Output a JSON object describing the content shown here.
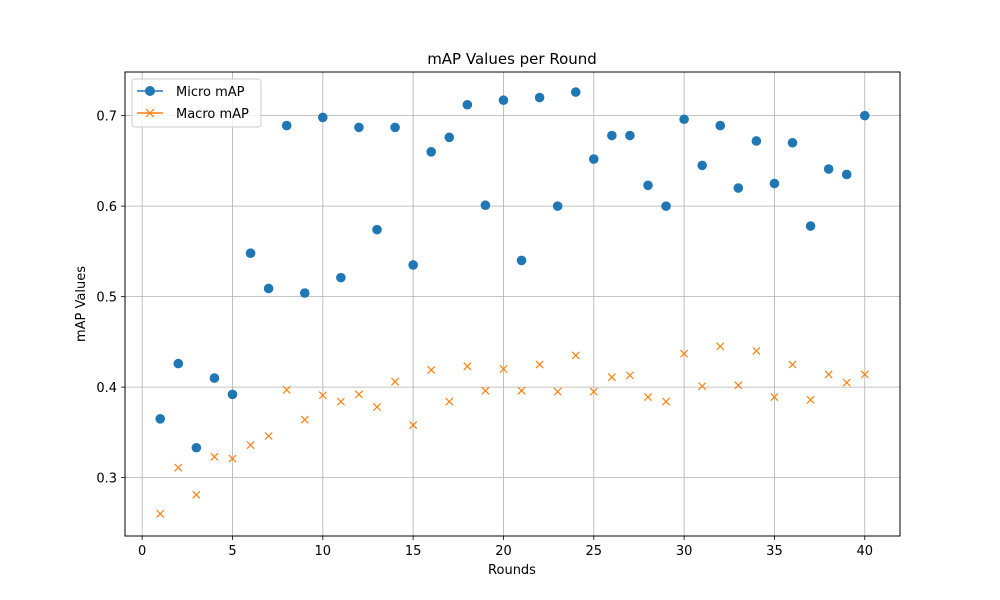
{
  "chart_data": {
    "type": "scatter",
    "title": "mAP Values per Round",
    "xlabel": "Rounds",
    "ylabel": "mAP Values",
    "xlim": [
      -0.95,
      41.95
    ],
    "ylim": [
      0.2355,
      0.7482
    ],
    "xticks": [
      0,
      5,
      10,
      15,
      20,
      25,
      30,
      35,
      40
    ],
    "yticks": [
      0.3,
      0.4,
      0.5,
      0.6,
      0.7
    ],
    "ytick_labels": [
      "0.3",
      "0.4",
      "0.5",
      "0.6",
      "0.7"
    ],
    "grid": true,
    "legend_position": "top-left",
    "x": [
      1,
      2,
      3,
      4,
      5,
      6,
      7,
      8,
      9,
      10,
      11,
      12,
      13,
      14,
      15,
      16,
      17,
      18,
      19,
      20,
      21,
      22,
      23,
      24,
      25,
      26,
      27,
      28,
      29,
      30,
      31,
      32,
      33,
      34,
      35,
      36,
      37,
      38,
      39,
      40
    ],
    "series": [
      {
        "name": "Micro mAP",
        "marker": "circle",
        "color": "#1f77b4",
        "values": [
          0.365,
          0.426,
          0.333,
          0.41,
          0.392,
          0.548,
          0.509,
          0.689,
          0.504,
          0.698,
          0.521,
          0.687,
          0.574,
          0.687,
          0.535,
          0.66,
          0.676,
          0.712,
          0.601,
          0.717,
          0.54,
          0.72,
          0.6,
          0.726,
          0.652,
          0.678,
          0.678,
          0.623,
          0.6,
          0.696,
          0.645,
          0.689,
          0.62,
          0.672,
          0.625,
          0.67,
          0.578,
          0.641,
          0.635,
          0.7
        ]
      },
      {
        "name": "Macro mAP",
        "marker": "x",
        "color": "#ff7f0e",
        "values": [
          0.26,
          0.311,
          0.281,
          0.323,
          0.321,
          0.336,
          0.346,
          0.397,
          0.364,
          0.391,
          0.384,
          0.392,
          0.378,
          0.406,
          0.358,
          0.419,
          0.384,
          0.423,
          0.396,
          0.42,
          0.396,
          0.425,
          0.395,
          0.435,
          0.395,
          0.411,
          0.413,
          0.389,
          0.384,
          0.437,
          0.401,
          0.445,
          0.402,
          0.44,
          0.389,
          0.425,
          0.386,
          0.414,
          0.405,
          0.414
        ]
      }
    ]
  }
}
